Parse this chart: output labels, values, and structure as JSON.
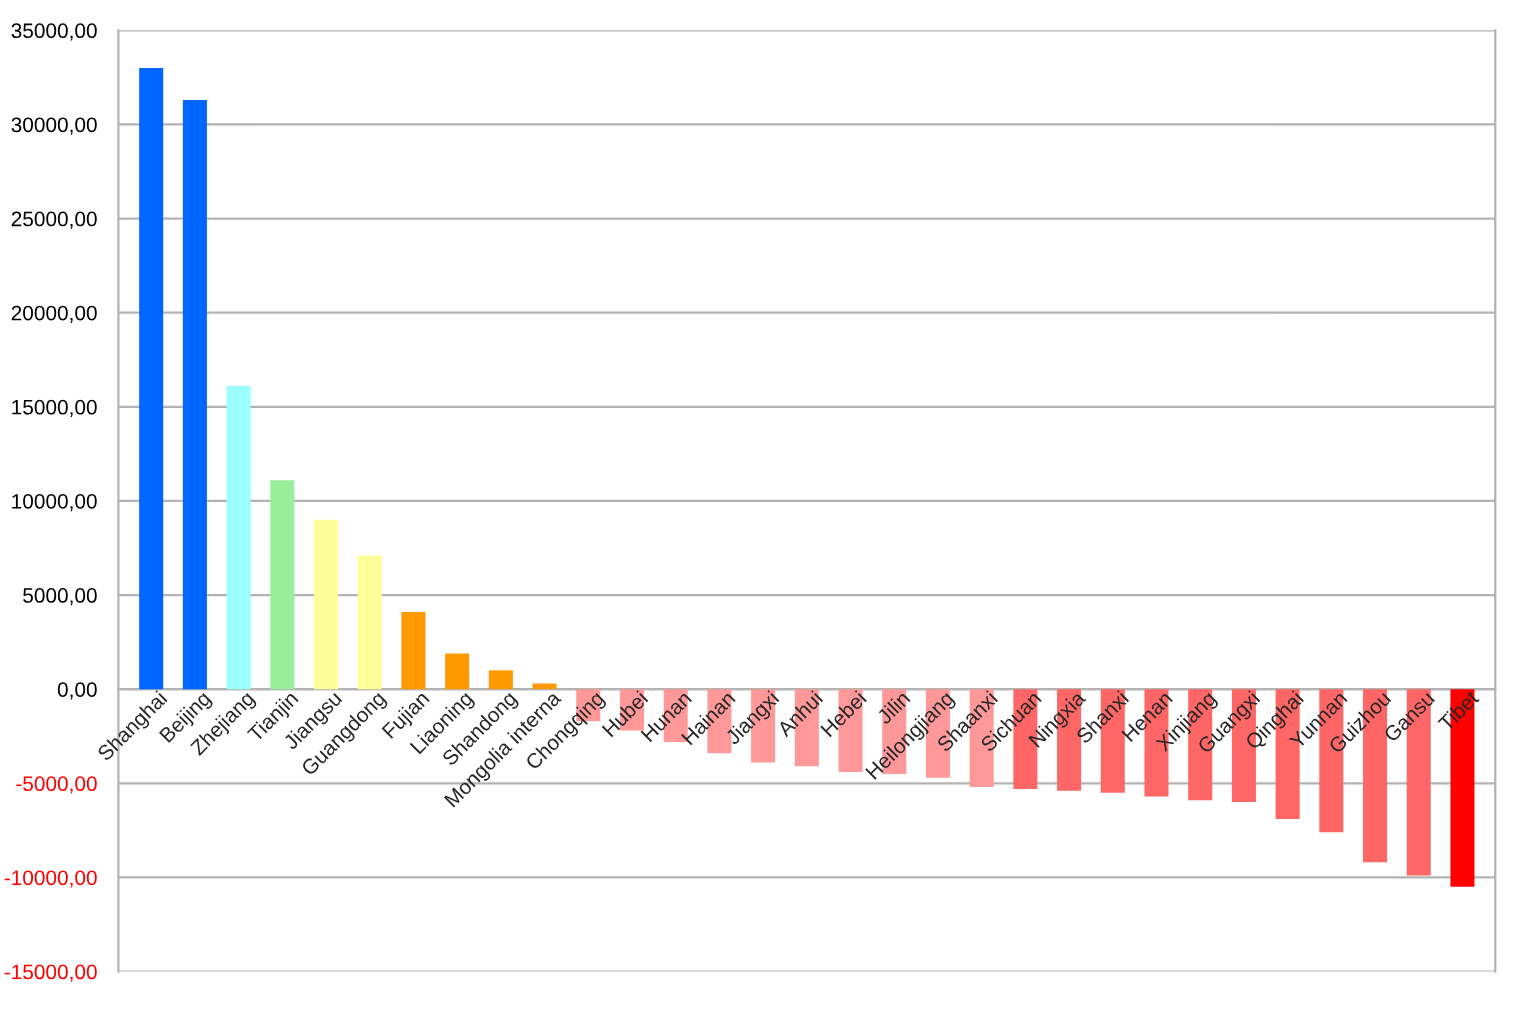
{
  "chart_data": {
    "type": "bar",
    "categories": [
      "Shanghai",
      "Beijing",
      "Zhejiang",
      "Tianjin",
      "Jiangsu",
      "Guangdong",
      "Fujian",
      "Liaoning",
      "Shandong",
      "Mongolia interna",
      "Chongqing",
      "Hubei",
      "Hunan",
      "Hainan",
      "Jiangxi",
      "Anhui",
      "Hebei",
      "Jilin",
      "Heilongjiang",
      "Shaanxi",
      "Sichuan",
      "Ningxia",
      "Shanxi",
      "Henan",
      "Xinjiang",
      "Guangxi",
      "Qinghai",
      "Yunnan",
      "Guizhou",
      "Gansu",
      "Tibet"
    ],
    "values": [
      33000,
      31300,
      16100,
      11100,
      9000,
      7100,
      4100,
      1900,
      1000,
      300,
      -1700,
      -2200,
      -2800,
      -3400,
      -3900,
      -4100,
      -4400,
      -4500,
      -4700,
      -5200,
      -5300,
      -5400,
      -5500,
      -5700,
      -5900,
      -6000,
      -6900,
      -7600,
      -9200,
      -9900,
      -10500
    ],
    "colors": [
      "#0066ff",
      "#0066ff",
      "#99ffff",
      "#99ee99",
      "#ffff99",
      "#ffff99",
      "#ff9900",
      "#ff9900",
      "#ff9900",
      "#ff9900",
      "#ff9999",
      "#ff9999",
      "#ff9999",
      "#ff9999",
      "#ff9999",
      "#ff9999",
      "#ff9999",
      "#ff9999",
      "#ff9999",
      "#ff9999",
      "#ff6666",
      "#ff6666",
      "#ff6666",
      "#ff6666",
      "#ff6666",
      "#ff6666",
      "#ff6666",
      "#ff6666",
      "#ff6666",
      "#ff6666",
      "#ff0000"
    ],
    "ylim": [
      -15000,
      35000
    ],
    "yticks": [
      {
        "value": -15000,
        "label": "-15000,00"
      },
      {
        "value": -10000,
        "label": "-10000,00"
      },
      {
        "value": -5000,
        "label": "-5000,00"
      },
      {
        "value": 0,
        "label": "0,00"
      },
      {
        "value": 5000,
        "label": "5000,00"
      },
      {
        "value": 10000,
        "label": "10000,00"
      },
      {
        "value": 15000,
        "label": "15000,00"
      },
      {
        "value": 20000,
        "label": "20000,00"
      },
      {
        "value": 25000,
        "label": "25000,00"
      },
      {
        "value": 30000,
        "label": "30000,00"
      },
      {
        "value": 35000,
        "label": "35000,00"
      }
    ],
    "grid": "y"
  }
}
